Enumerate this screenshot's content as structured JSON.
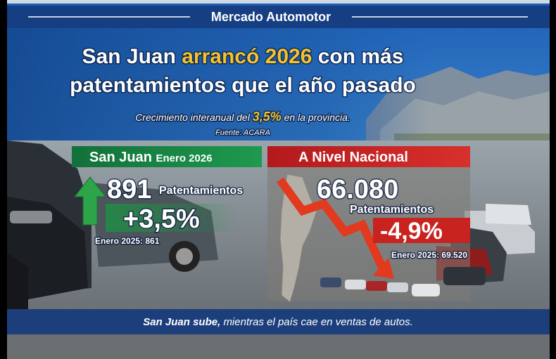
{
  "header": {
    "section": "Mercado Automotor"
  },
  "title": {
    "line1_start": "San Juan",
    "highlight": "arrancó 2026",
    "line1_end": "con más",
    "line2": "patentamientos que el año pasado"
  },
  "subtitle": {
    "start": "Crecimiento interanual del",
    "highlight": "3,5%",
    "end": "en la provincia."
  },
  "source": "Fuente: ACARA",
  "left_panel": {
    "title": "San Juan",
    "period": "Enero 2026",
    "value": "891",
    "unit": "Patentamientos",
    "change": "+3,5%",
    "previous": "Enero 2025: 861"
  },
  "right_panel": {
    "title": "A Nivel Nacional",
    "value": "66.080",
    "unit": "Patentamientos",
    "change": "-4,9%",
    "previous": "Enero 2025: 69.520"
  },
  "footer": {
    "highlight": "San Juan sube,",
    "rest": "mientras el país cae en ventas de autos."
  }
}
